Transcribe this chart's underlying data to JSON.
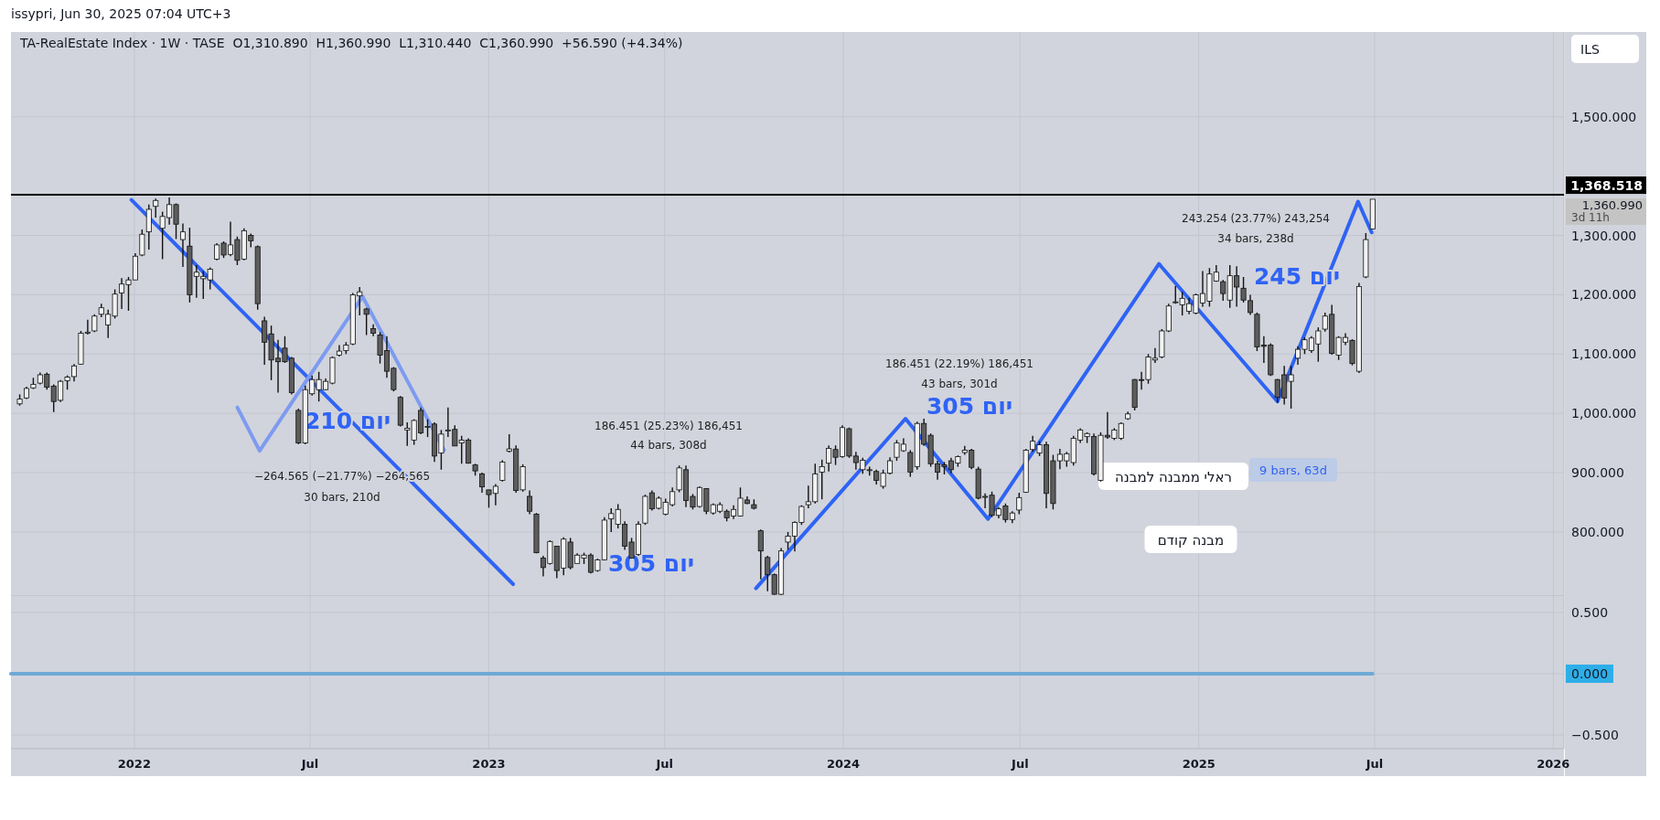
{
  "chart_data": [
    {
      "type": "candlestick",
      "title": "TA-RealEstate Index · 1W · TASE  O1,310.890  H1,360.990  L1,310.440  C1,360.990  +56.590 (+4.34%)",
      "subtitle": "issypri, Jun 30, 2025 07:04 UTC+3",
      "x": [
        "2021-09-05",
        "2021-09-12",
        "2021-09-19",
        "2021-09-26",
        "2021-10-03",
        "2021-10-10",
        "2021-10-17",
        "2021-10-24",
        "2021-10-31",
        "2021-11-07",
        "2021-11-14",
        "2021-11-21",
        "2021-11-28",
        "2021-12-05",
        "2021-12-12",
        "2021-12-19",
        "2021-12-26",
        "2022-01-02",
        "2022-01-09",
        "2022-01-16",
        "2022-01-23",
        "2022-01-30",
        "2022-02-06",
        "2022-02-13",
        "2022-02-20",
        "2022-02-27",
        "2022-03-06",
        "2022-03-13",
        "2022-03-20",
        "2022-03-27",
        "2022-04-03",
        "2022-04-10",
        "2022-04-17",
        "2022-04-24",
        "2022-05-01",
        "2022-05-08",
        "2022-05-15",
        "2022-05-22",
        "2022-05-29",
        "2022-06-05",
        "2022-06-12",
        "2022-06-19",
        "2022-06-26",
        "2022-07-03",
        "2022-07-10",
        "2022-07-17",
        "2022-07-24",
        "2022-07-31",
        "2022-08-07",
        "2022-08-14",
        "2022-08-21",
        "2022-08-28",
        "2022-09-04",
        "2022-09-11",
        "2022-09-18",
        "2022-09-25",
        "2022-10-02",
        "2022-10-09",
        "2022-10-16",
        "2022-10-23",
        "2022-10-30",
        "2022-11-06",
        "2022-11-13",
        "2022-11-20",
        "2022-11-27",
        "2022-12-04",
        "2022-12-11",
        "2022-12-18",
        "2022-12-25",
        "2023-01-01",
        "2023-01-08",
        "2023-01-15",
        "2023-01-22",
        "2023-01-29",
        "2023-02-05",
        "2023-02-12",
        "2023-02-19",
        "2023-02-26",
        "2023-03-05",
        "2023-03-12",
        "2023-03-19",
        "2023-03-26",
        "2023-04-02",
        "2023-04-09",
        "2023-04-16",
        "2023-04-23",
        "2023-04-30",
        "2023-05-07",
        "2023-05-14",
        "2023-05-21",
        "2023-05-28",
        "2023-06-04",
        "2023-06-11",
        "2023-06-18",
        "2023-06-25",
        "2023-07-02",
        "2023-07-09",
        "2023-07-16",
        "2023-07-23",
        "2023-07-30",
        "2023-08-06",
        "2023-08-13",
        "2023-08-20",
        "2023-08-27",
        "2023-09-03",
        "2023-09-10",
        "2023-09-17",
        "2023-09-24",
        "2023-10-01",
        "2023-10-08",
        "2023-10-15",
        "2023-10-22",
        "2023-10-29",
        "2023-11-05",
        "2023-11-12",
        "2023-11-19",
        "2023-11-26",
        "2023-12-03",
        "2023-12-10",
        "2023-12-17",
        "2023-12-24",
        "2023-12-31",
        "2024-01-07",
        "2024-01-14",
        "2024-01-21",
        "2024-01-28",
        "2024-02-04",
        "2024-02-11",
        "2024-02-18",
        "2024-02-25",
        "2024-03-03",
        "2024-03-10",
        "2024-03-17",
        "2024-03-24",
        "2024-03-31",
        "2024-04-07",
        "2024-04-14",
        "2024-04-21",
        "2024-04-28",
        "2024-05-05",
        "2024-05-12",
        "2024-05-19",
        "2024-05-26",
        "2024-06-02",
        "2024-06-09",
        "2024-06-16",
        "2024-06-23",
        "2024-06-30",
        "2024-07-07",
        "2024-07-14",
        "2024-07-21",
        "2024-07-28",
        "2024-08-04",
        "2024-08-11",
        "2024-08-18",
        "2024-08-25",
        "2024-09-01",
        "2024-09-08",
        "2024-09-15",
        "2024-09-22",
        "2024-09-29",
        "2024-10-06",
        "2024-10-13",
        "2024-10-20",
        "2024-10-27",
        "2024-11-03",
        "2024-11-10",
        "2024-11-17",
        "2024-11-24",
        "2024-12-01",
        "2024-12-08",
        "2024-12-15",
        "2024-12-22",
        "2024-12-29",
        "2025-01-05",
        "2025-01-12",
        "2025-01-19",
        "2025-01-26",
        "2025-02-02",
        "2025-02-09",
        "2025-02-16",
        "2025-02-23",
        "2025-03-02",
        "2025-03-09",
        "2025-03-16",
        "2025-03-23",
        "2025-03-30",
        "2025-04-06",
        "2025-04-13",
        "2025-04-20",
        "2025-04-27",
        "2025-05-04",
        "2025-05-11",
        "2025-05-18",
        "2025-05-25",
        "2025-06-01",
        "2025-06-08",
        "2025-06-15",
        "2025-06-22",
        "2025-06-29"
      ],
      "ohlc": [
        [
          1016,
          1032,
          1013,
          1024
        ],
        [
          1026,
          1045,
          1024,
          1042
        ],
        [
          1043,
          1060,
          1041,
          1049
        ],
        [
          1051,
          1069,
          1049,
          1065
        ],
        [
          1066,
          1069,
          1040,
          1044
        ],
        [
          1046,
          1049,
          1002,
          1020
        ],
        [
          1022,
          1056,
          1019,
          1054
        ],
        [
          1055,
          1064,
          1040,
          1061
        ],
        [
          1062,
          1083,
          1054,
          1080
        ],
        [
          1083,
          1139,
          1082,
          1135
        ],
        [
          1135,
          1158,
          1133,
          1137
        ],
        [
          1139,
          1167,
          1137,
          1164
        ],
        [
          1167,
          1185,
          1162,
          1178
        ],
        [
          1149,
          1175,
          1127,
          1167
        ],
        [
          1164,
          1209,
          1160,
          1201
        ],
        [
          1203,
          1228,
          1176,
          1218
        ],
        [
          1217,
          1230,
          1173,
          1225
        ],
        [
          1225,
          1270,
          1225,
          1265
        ],
        [
          1267,
          1310,
          1265,
          1302
        ],
        [
          1306,
          1352,
          1276,
          1344
        ],
        [
          1349,
          1362,
          1330,
          1359
        ],
        [
          1312,
          1340,
          1260,
          1332
        ],
        [
          1330,
          1364,
          1318,
          1352
        ],
        [
          1352,
          1354,
          1294,
          1319
        ],
        [
          1293,
          1320,
          1247,
          1306
        ],
        [
          1282,
          1313,
          1187,
          1200
        ],
        [
          1231,
          1250,
          1195,
          1238
        ],
        [
          1227,
          1240,
          1193,
          1231
        ],
        [
          1225,
          1246,
          1209,
          1243
        ],
        [
          1260,
          1287,
          1258,
          1284
        ],
        [
          1287,
          1290,
          1262,
          1267
        ],
        [
          1268,
          1323,
          1265,
          1284
        ],
        [
          1293,
          1298,
          1250,
          1258
        ],
        [
          1260,
          1312,
          1258,
          1308
        ],
        [
          1300,
          1303,
          1280,
          1291
        ],
        [
          1281,
          1283,
          1175,
          1185
        ],
        [
          1156,
          1163,
          1082,
          1120
        ],
        [
          1134,
          1148,
          1056,
          1090
        ],
        [
          1093,
          1124,
          1035,
          1087
        ],
        [
          1110,
          1130,
          1085,
          1087
        ],
        [
          1093,
          1095,
          1032,
          1035
        ],
        [
          1005,
          1008,
          948,
          950
        ],
        [
          950,
          1047,
          948,
          1040
        ],
        [
          1033,
          1064,
          1030,
          1057
        ],
        [
          1040,
          1070,
          1020,
          1057
        ],
        [
          1040,
          1059,
          1039,
          1054
        ],
        [
          1051,
          1096,
          1049,
          1094
        ],
        [
          1098,
          1115,
          1096,
          1105
        ],
        [
          1106,
          1120,
          1100,
          1115
        ],
        [
          1117,
          1203,
          1115,
          1200
        ],
        [
          1198,
          1213,
          1165,
          1205
        ],
        [
          1176,
          1178,
          1132,
          1167
        ],
        [
          1143,
          1150,
          1130,
          1135
        ],
        [
          1132,
          1137,
          1084,
          1098
        ],
        [
          1106,
          1130,
          1060,
          1071
        ],
        [
          1076,
          1078,
          1037,
          1040
        ],
        [
          1027,
          1029,
          978,
          980
        ],
        [
          972,
          985,
          945,
          975
        ],
        [
          955,
          990,
          947,
          988
        ],
        [
          1005,
          1010,
          965,
          967
        ],
        [
          978,
          990,
          960,
          978
        ],
        [
          982,
          985,
          918,
          928
        ],
        [
          933,
          972,
          905,
          965
        ],
        [
          972,
          1010,
          960,
          972
        ],
        [
          973,
          980,
          945,
          945
        ],
        [
          950,
          962,
          915,
          955
        ],
        [
          955,
          958,
          915,
          916
        ],
        [
          913,
          915,
          895,
          903
        ],
        [
          898,
          900,
          866,
          876
        ],
        [
          871,
          871,
          841,
          863
        ],
        [
          865,
          881,
          845,
          877
        ],
        [
          887,
          921,
          885,
          918
        ],
        [
          936,
          965,
          934,
          940
        ],
        [
          940,
          946,
          866,
          870
        ],
        [
          871,
          914,
          868,
          910
        ],
        [
          860,
          870,
          830,
          835
        ],
        [
          830,
          832,
          764,
          765
        ],
        [
          756,
          760,
          725,
          740
        ],
        [
          747,
          786,
          745,
          784
        ],
        [
          776,
          776,
          722,
          735
        ],
        [
          739,
          791,
          727,
          788
        ],
        [
          783,
          790,
          737,
          740
        ],
        [
          747,
          764,
          747,
          761
        ],
        [
          756,
          765,
          746,
          761
        ],
        [
          761,
          764,
          730,
          732
        ],
        [
          735,
          755,
          733,
          753
        ],
        [
          753,
          825,
          752,
          820
        ],
        [
          822,
          840,
          800,
          831
        ],
        [
          813,
          847,
          806,
          838
        ],
        [
          813,
          818,
          770,
          776
        ],
        [
          783,
          790,
          755,
          756
        ],
        [
          762,
          818,
          760,
          813
        ],
        [
          815,
          863,
          812,
          860
        ],
        [
          866,
          870,
          836,
          839
        ],
        [
          840,
          860,
          838,
          857
        ],
        [
          830,
          856,
          828,
          850
        ],
        [
          846,
          875,
          843,
          868
        ],
        [
          871,
          912,
          867,
          908
        ],
        [
          905,
          912,
          842,
          853
        ],
        [
          860,
          864,
          838,
          842
        ],
        [
          843,
          877,
          841,
          875
        ],
        [
          873,
          874,
          830,
          835
        ],
        [
          832,
          848,
          829,
          846
        ],
        [
          835,
          850,
          832,
          846
        ],
        [
          835,
          838,
          818,
          824
        ],
        [
          827,
          845,
          822,
          838
        ],
        [
          827,
          875,
          826,
          857
        ],
        [
          854,
          860,
          847,
          848
        ],
        [
          846,
          855,
          838,
          840
        ],
        [
          802,
          804,
          720,
          768
        ],
        [
          757,
          760,
          700,
          728
        ],
        [
          728,
          730,
          694,
          695
        ],
        [
          695,
          773,
          694,
          768
        ],
        [
          783,
          800,
          770,
          793
        ],
        [
          793,
          818,
          767,
          816
        ],
        [
          816,
          845,
          812,
          843
        ],
        [
          846,
          878,
          840,
          851
        ],
        [
          851,
          915,
          848,
          898
        ],
        [
          901,
          922,
          855,
          910
        ],
        [
          916,
          946,
          902,
          941
        ],
        [
          939,
          946,
          913,
          926
        ],
        [
          927,
          980,
          925,
          976
        ],
        [
          974,
          976,
          925,
          928
        ],
        [
          928,
          935,
          905,
          917
        ],
        [
          905,
          925,
          898,
          921
        ],
        [
          905,
          910,
          895,
          905
        ],
        [
          902,
          905,
          880,
          887
        ],
        [
          877,
          905,
          873,
          899
        ],
        [
          899,
          926,
          897,
          920
        ],
        [
          926,
          955,
          920,
          950
        ],
        [
          937,
          958,
          935,
          948
        ],
        [
          934,
          938,
          893,
          901
        ],
        [
          910,
          986,
          905,
          983
        ],
        [
          983,
          991,
          945,
          948
        ],
        [
          963,
          966,
          910,
          915
        ],
        [
          915,
          920,
          888,
          901
        ],
        [
          913,
          918,
          897,
          910
        ],
        [
          920,
          925,
          899,
          905
        ],
        [
          916,
          929,
          910,
          927
        ],
        [
          934,
          945,
          930,
          938
        ],
        [
          938,
          940,
          906,
          909
        ],
        [
          906,
          910,
          855,
          857
        ],
        [
          860,
          865,
          840,
          860
        ],
        [
          862,
          868,
          825,
          828
        ],
        [
          828,
          842,
          823,
          839
        ],
        [
          844,
          848,
          816,
          821
        ],
        [
          821,
          835,
          815,
          832
        ],
        [
          837,
          866,
          830,
          858
        ],
        [
          867,
          940,
          866,
          938
        ],
        [
          939,
          962,
          935,
          953
        ],
        [
          933,
          953,
          928,
          947
        ],
        [
          947,
          952,
          840,
          865
        ],
        [
          920,
          930,
          838,
          848
        ],
        [
          920,
          940,
          906,
          931
        ],
        [
          920,
          935,
          910,
          932
        ],
        [
          917,
          962,
          912,
          958
        ],
        [
          955,
          975,
          950,
          972
        ],
        [
          961,
          968,
          950,
          966
        ],
        [
          961,
          966,
          895,
          898
        ],
        [
          887,
          968,
          885,
          963
        ],
        [
          963,
          1002,
          957,
          960
        ],
        [
          958,
          975,
          955,
          972
        ],
        [
          958,
          985,
          955,
          983
        ],
        [
          991,
          1003,
          989,
          999
        ],
        [
          1057,
          1058,
          1005,
          1010
        ],
        [
          1057,
          1070,
          1040,
          1056
        ],
        [
          1057,
          1100,
          1050,
          1095
        ],
        [
          1090,
          1110,
          1085,
          1093
        ],
        [
          1095,
          1142,
          1093,
          1139
        ],
        [
          1139,
          1185,
          1137,
          1181
        ],
        [
          1188,
          1215,
          1185,
          1188
        ],
        [
          1183,
          1205,
          1165,
          1194
        ],
        [
          1172,
          1195,
          1167,
          1185
        ],
        [
          1169,
          1202,
          1167,
          1200
        ],
        [
          1186,
          1240,
          1180,
          1202
        ],
        [
          1189,
          1245,
          1180,
          1235
        ],
        [
          1223,
          1250,
          1222,
          1238
        ],
        [
          1222,
          1225,
          1190,
          1202
        ],
        [
          1191,
          1250,
          1178,
          1232
        ],
        [
          1232,
          1248,
          1180,
          1213
        ],
        [
          1211,
          1230,
          1187,
          1191
        ],
        [
          1190,
          1200,
          1166,
          1170
        ],
        [
          1167,
          1170,
          1105,
          1112
        ],
        [
          1115,
          1130,
          1085,
          1113
        ],
        [
          1115,
          1118,
          1063,
          1065
        ],
        [
          1057,
          1058,
          1018,
          1027
        ],
        [
          1065,
          1080,
          1015,
          1026
        ],
        [
          1054,
          1080,
          1008,
          1065
        ],
        [
          1093,
          1113,
          1082,
          1108
        ],
        [
          1108,
          1128,
          1100,
          1124
        ],
        [
          1106,
          1130,
          1102,
          1127
        ],
        [
          1117,
          1145,
          1087,
          1139
        ],
        [
          1142,
          1170,
          1138,
          1164
        ],
        [
          1167,
          1183,
          1099,
          1101
        ],
        [
          1098,
          1130,
          1090,
          1128
        ],
        [
          1120,
          1135,
          1115,
          1128
        ],
        [
          1123,
          1125,
          1081,
          1084
        ],
        [
          1071,
          1220,
          1068,
          1214
        ],
        [
          1230,
          1304,
          1228,
          1293
        ],
        [
          1310.89,
          1360.99,
          1310.44,
          1360.99
        ]
      ],
      "series": [
        {
          "type": "line",
          "color": "#2f63f5",
          "x": [
            "2021-12-29",
            "2023-01-26"
          ],
          "values": [
            1360,
            712
          ]
        },
        {
          "type": "line",
          "color": "#7d9bf0",
          "x": [
            "2022-04-17",
            "2022-05-10",
            "2022-08-24",
            "2022-11-16"
          ],
          "values": [
            1010,
            937,
            1197,
            938
          ]
        },
        {
          "type": "line",
          "color": "#2f63f5",
          "x": [
            "2023-10-03",
            "2024-03-05",
            "2024-05-29",
            "2024-11-21",
            "2025-03-23",
            "2025-06-14",
            "2025-06-28"
          ],
          "values": [
            705,
            991,
            822,
            1252,
            1020,
            1357,
            1305
          ]
        }
      ],
      "ref_lines": [
        {
          "axis": "y",
          "value": 1368.518,
          "label": "1,368.518",
          "color": "#000000"
        }
      ],
      "annotations": [
        "ILS",
        "1,360.990",
        "3d 11h",
        "−264.565 (−21.77%) −264,565",
        "30 bars, 210d",
        "186.451 (25.23%) 186,451",
        "44 bars, 308d",
        "186.451 (22.19%) 186,451",
        "43 bars, 301d",
        "243.254 (23.77%) 243,254",
        "34 bars, 238d",
        "9 bars, 63d",
        "ראלי ממבנה למבנה",
        "מבנה קודם",
        "210 יום",
        "305 יום",
        "305 יום",
        "245 יום"
      ],
      "xlim": [
        "2021-08-27",
        "2026-01-12"
      ],
      "ylim": [
        692,
        1643
      ],
      "yticks": [
        {
          "value": 800,
          "label": "800.000"
        },
        {
          "value": 900,
          "label": "900.000"
        },
        {
          "value": 1000,
          "label": "1,000.000"
        },
        {
          "value": 1100,
          "label": "1,100.000"
        },
        {
          "value": 1200,
          "label": "1,200.000"
        },
        {
          "value": 1300,
          "label": "1,300.000"
        },
        {
          "value": 1500,
          "label": "1,500.000"
        }
      ],
      "xticks": [
        {
          "value": "2022-01-01",
          "label": null
        },
        {
          "value": "2022-07-01",
          "label": null
        },
        {
          "value": "2023-01-01",
          "label": null
        },
        {
          "value": "2023-07-01",
          "label": null
        },
        {
          "value": "2024-01-01",
          "label": null
        },
        {
          "value": "2024-07-01",
          "label": null
        },
        {
          "value": "2025-01-01",
          "label": null
        },
        {
          "value": "2025-07-01",
          "label": null
        },
        {
          "value": "2026-01-01",
          "label": null
        }
      ],
      "tick_labels": "y",
      "grid": true
    },
    {
      "type": "line",
      "series": [
        {
          "color": "#6fa9d6",
          "x": [
            "2021-08-27",
            "2025-06-29"
          ],
          "values": [
            0,
            0
          ]
        }
      ],
      "xlim": [
        "2021-08-27",
        "2026-01-12"
      ],
      "ylim": [
        -0.612,
        0.634
      ],
      "yticks": [
        {
          "value": 0.5,
          "label": "0.500"
        },
        {
          "value": 0,
          "label": "0.000"
        },
        {
          "value": -0.5,
          "label": "−0.500"
        }
      ],
      "xticks": [
        {
          "value": "2022-01-01",
          "label": "2022"
        },
        {
          "value": "2022-07-01",
          "label": "Jul"
        },
        {
          "value": "2023-01-01",
          "label": "2023"
        },
        {
          "value": "2023-07-01",
          "label": "Jul"
        },
        {
          "value": "2024-01-01",
          "label": "2024"
        },
        {
          "value": "2024-07-01",
          "label": "Jul"
        },
        {
          "value": "2025-01-01",
          "label": "2025"
        },
        {
          "value": "2025-07-01",
          "label": "Jul"
        },
        {
          "value": "2026-01-01",
          "label": "2026"
        }
      ],
      "grid": true
    }
  ]
}
